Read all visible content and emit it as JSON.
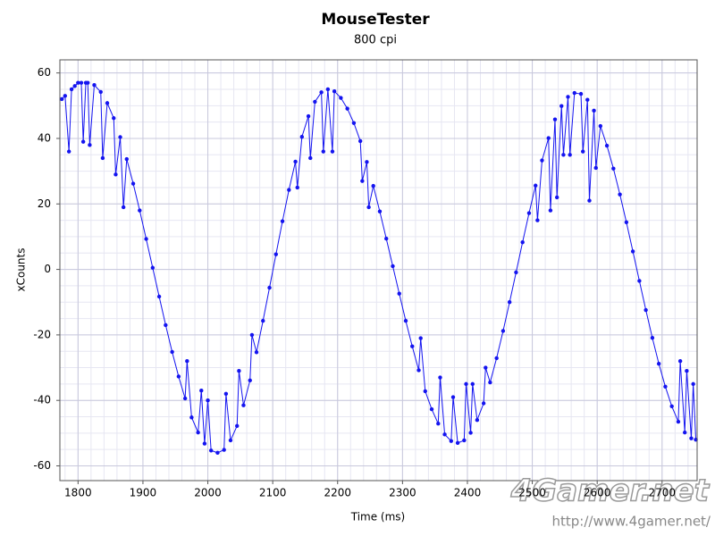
{
  "chart_data": {
    "type": "line",
    "title": "MouseTester",
    "subtitle": "800 cpi",
    "x_label": "Time (ms)",
    "y_label": "xCounts",
    "xlim": [
      1772,
      2754
    ],
    "ylim": [
      -64.5,
      64
    ],
    "xticks": [
      1800,
      1900,
      2000,
      2100,
      2200,
      2300,
      2400,
      2500,
      2600,
      2700
    ],
    "yticks": [
      -60,
      -40,
      -20,
      0,
      20,
      40,
      60
    ],
    "grid": true,
    "markers": true,
    "series": [
      {
        "name": "xCounts",
        "color": "#1414f0",
        "x": [
          1775,
          1780,
          1786,
          1790,
          1795,
          1800,
          1805,
          1808,
          1812,
          1815,
          1818,
          1825,
          1835,
          1838,
          1845,
          1855,
          1858,
          1865,
          1870,
          1875,
          1885,
          1895,
          1905,
          1915,
          1925,
          1935,
          1945,
          1955,
          1965,
          1968,
          1975,
          1985,
          1990,
          1995,
          2000,
          2005,
          2015,
          2025,
          2028,
          2035,
          2045,
          2048,
          2055,
          2065,
          2068,
          2075,
          2085,
          2095,
          2105,
          2115,
          2125,
          2135,
          2138,
          2145,
          2155,
          2158,
          2165,
          2175,
          2178,
          2185,
          2192,
          2195,
          2205,
          2215,
          2225,
          2235,
          2238,
          2245,
          2248,
          2255,
          2265,
          2275,
          2285,
          2295,
          2305,
          2315,
          2325,
          2328,
          2335,
          2345,
          2355,
          2358,
          2365,
          2375,
          2378,
          2385,
          2395,
          2398,
          2405,
          2408,
          2415,
          2425,
          2428,
          2435,
          2445,
          2455,
          2465,
          2475,
          2485,
          2495,
          2505,
          2508,
          2515,
          2525,
          2528,
          2535,
          2538,
          2545,
          2548,
          2555,
          2558,
          2565,
          2575,
          2578,
          2585,
          2588,
          2595,
          2598,
          2605,
          2615,
          2625,
          2635,
          2645,
          2655,
          2665,
          2675,
          2685,
          2695,
          2705,
          2715,
          2725,
          2728,
          2735,
          2738,
          2745,
          2748,
          2752
        ],
        "values": [
          52,
          53,
          36,
          55,
          56,
          57,
          57,
          39,
          57,
          57,
          38,
          56.3,
          54.2,
          34,
          50.8,
          46.2,
          29,
          40.4,
          19,
          33.7,
          26.2,
          18,
          9.3,
          0.5,
          -8.3,
          -17,
          -25.2,
          -32.7,
          -39.4,
          -28,
          -45.2,
          -49.8,
          -37,
          -53.2,
          -40,
          -55.3,
          -56,
          -55.1,
          -38,
          -52.2,
          -47.8,
          -31,
          -41.5,
          -33.9,
          -20,
          -25.3,
          -15.7,
          -5.6,
          4.6,
          14.7,
          24.3,
          32.9,
          25,
          40.5,
          46.8,
          34,
          51.2,
          54.1,
          36,
          55,
          36,
          54.4,
          52.4,
          49.1,
          44.7,
          39.2,
          27,
          32.8,
          19,
          25.5,
          17.7,
          9.4,
          1,
          -7.4,
          -15.7,
          -23.5,
          -30.8,
          -21,
          -37.2,
          -42.7,
          -47.1,
          -33,
          -50.4,
          -52.4,
          -39,
          -53,
          -52.2,
          -35,
          -49.9,
          -35,
          -46,
          -40.9,
          -30,
          -34.5,
          -27.1,
          -18.8,
          -10,
          -0.9,
          8.3,
          17.2,
          25.6,
          15,
          33.3,
          40.1,
          18,
          45.8,
          22,
          49.9,
          35,
          52.7,
          35,
          53.9,
          53.6,
          36,
          51.8,
          21,
          48.5,
          31,
          43.8,
          37.8,
          30.8,
          22.9,
          14.4,
          5.5,
          -3.5,
          -12.4,
          -20.9,
          -28.8,
          -35.8,
          -41.8,
          -46.5,
          -28,
          -49.8,
          -31,
          -51.6,
          -35,
          -52
        ]
      }
    ]
  },
  "watermark": {
    "logo": "4Gamer.net",
    "url": "http://www.4gamer.net/"
  }
}
